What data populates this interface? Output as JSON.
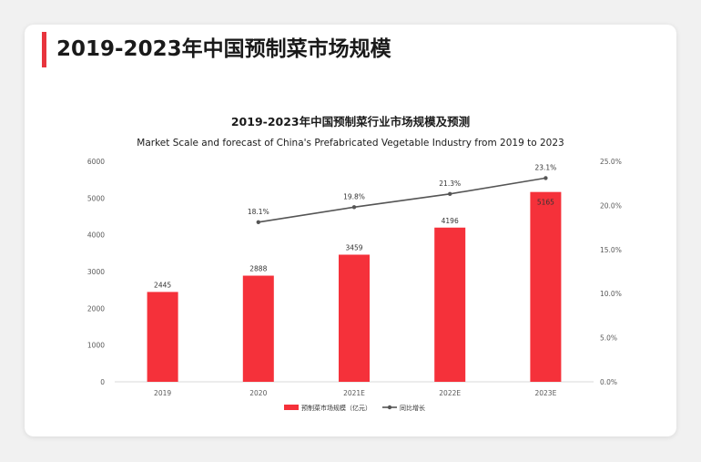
{
  "page": {
    "title": "2019-2023年中国预制菜市场规模"
  },
  "colors": {
    "accent": "#e8343d",
    "bar": "#f5313a",
    "line": "#555555"
  },
  "chart_data": {
    "type": "bar",
    "title": "2019-2023年中国预制菜行业市场规模及预测",
    "subtitle": "Market Scale and forecast of China's Prefabricated Vegetable Industry from 2019 to 2023",
    "categories": [
      "2019",
      "2020",
      "2021E",
      "2022E",
      "2023E"
    ],
    "series": [
      {
        "name": "预制菜市场规模（亿元）",
        "type": "bar",
        "axis": "left",
        "values": [
          2445,
          2888,
          3459,
          4196,
          5165
        ],
        "labels": [
          "2445",
          "2888",
          "3459",
          "4196",
          "5165"
        ]
      },
      {
        "name": "同比增长",
        "type": "line",
        "axis": "right",
        "values": [
          null,
          18.1,
          19.8,
          21.3,
          23.1
        ],
        "labels": [
          "",
          "18.1%",
          "19.8%",
          "21.3%",
          "23.1%"
        ]
      }
    ],
    "ylim": [
      0,
      6000
    ],
    "yticks": [
      "0",
      "1000",
      "2000",
      "3000",
      "4000",
      "5000",
      "6000"
    ],
    "y2lim": [
      0,
      25
    ],
    "y2ticks": [
      "0.0%",
      "5.0%",
      "10.0%",
      "15.0%",
      "20.0%",
      "25.0%"
    ],
    "grid": false,
    "legend_position": "bottom-center"
  }
}
